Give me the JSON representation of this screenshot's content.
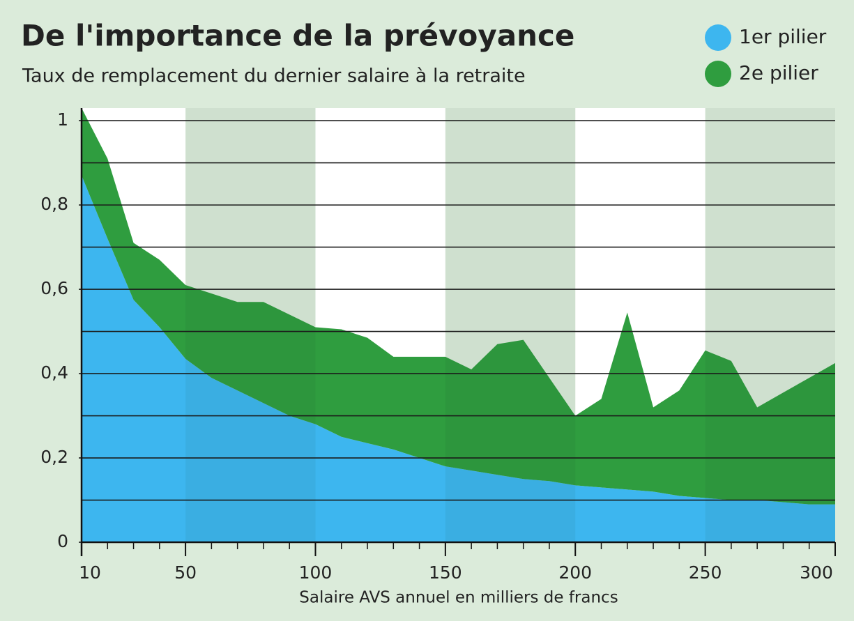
{
  "chart_data": {
    "type": "stacked_area",
    "title": "De l'importance de la prévoyance",
    "subtitle": "Taux de remplacement du dernier salaire à la retraite",
    "x_label": "Salaire AVS annuel en milliers de francs",
    "x": [
      10,
      20,
      30,
      40,
      50,
      60,
      70,
      80,
      90,
      100,
      110,
      120,
      130,
      140,
      150,
      160,
      170,
      180,
      190,
      200,
      210,
      220,
      230,
      240,
      250,
      260,
      270,
      280,
      290,
      300
    ],
    "series": [
      {
        "name": "1er pilier",
        "color": "#3db6ef",
        "values": [
          0.87,
          0.72,
          0.575,
          0.51,
          0.435,
          0.39,
          0.36,
          0.33,
          0.3,
          0.28,
          0.25,
          0.235,
          0.22,
          0.2,
          0.18,
          0.17,
          0.16,
          0.15,
          0.145,
          0.135,
          0.13,
          0.125,
          0.12,
          0.11,
          0.105,
          0.1,
          0.1,
          0.095,
          0.09,
          0.09
        ]
      },
      {
        "name": "2e pilier",
        "color": "#2f9d3f",
        "values": [
          0.16,
          0.19,
          0.135,
          0.16,
          0.175,
          0.2,
          0.21,
          0.24,
          0.24,
          0.23,
          0.255,
          0.25,
          0.22,
          0.24,
          0.26,
          0.24,
          0.31,
          0.33,
          0.245,
          0.165,
          0.21,
          0.42,
          0.2,
          0.25,
          0.35,
          0.33,
          0.22,
          0.26,
          0.3,
          0.335
        ]
      }
    ],
    "xlim": [
      10,
      300
    ],
    "xticks": [
      10,
      50,
      100,
      150,
      200,
      250,
      300
    ],
    "ylim": [
      0,
      1.03
    ],
    "yticks": [
      0,
      {
        "value": 0.2,
        "label": "0,2"
      },
      {
        "value": 0.4,
        "label": "0,4"
      },
      {
        "value": 0.6,
        "label": "0,6"
      },
      {
        "value": 0.8,
        "label": "0,8"
      },
      1
    ],
    "ygrid": [
      0.1,
      0.2,
      0.3,
      0.4,
      0.5,
      0.6,
      0.7,
      0.8,
      0.9,
      1
    ],
    "legend": "top-right"
  }
}
